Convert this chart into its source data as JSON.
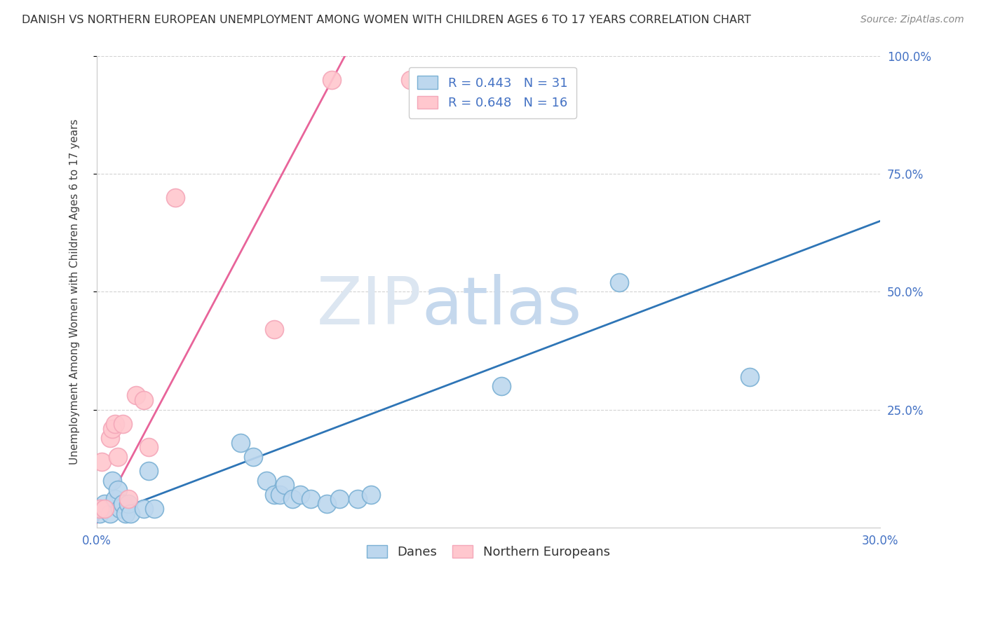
{
  "title": "DANISH VS NORTHERN EUROPEAN UNEMPLOYMENT AMONG WOMEN WITH CHILDREN AGES 6 TO 17 YEARS CORRELATION CHART",
  "source": "Source: ZipAtlas.com",
  "ylabel": "Unemployment Among Women with Children Ages 6 to 17 years",
  "xlim": [
    0.0,
    0.3
  ],
  "ylim": [
    0.0,
    1.0
  ],
  "xticks": [
    0.0,
    0.05,
    0.1,
    0.15,
    0.2,
    0.25,
    0.3
  ],
  "xticklabels": [
    "0.0%",
    "",
    "",
    "",
    "",
    "",
    "30.0%"
  ],
  "yticks": [
    0.25,
    0.5,
    0.75,
    1.0
  ],
  "yticklabels": [
    "25.0%",
    "50.0%",
    "75.0%",
    "100.0%"
  ],
  "danes_R": 0.443,
  "danes_N": 31,
  "northern_R": 0.648,
  "northern_N": 16,
  "danes_fill": "#bdd7ee",
  "danes_edge": "#7ab0d4",
  "northern_fill": "#ffc7ce",
  "northern_edge": "#f4a7b9",
  "line_danes": "#2e75b6",
  "line_northern": "#e8649a",
  "watermark_zip_color": "#dce6f1",
  "watermark_atlas_color": "#c5d8ed",
  "danes_x": [
    0.001,
    0.002,
    0.003,
    0.005,
    0.006,
    0.007,
    0.008,
    0.009,
    0.01,
    0.011,
    0.012,
    0.013,
    0.018,
    0.02,
    0.022,
    0.055,
    0.06,
    0.065,
    0.068,
    0.07,
    0.072,
    0.075,
    0.078,
    0.082,
    0.088,
    0.093,
    0.1,
    0.105,
    0.155,
    0.2,
    0.25
  ],
  "danes_y": [
    0.03,
    0.04,
    0.05,
    0.03,
    0.1,
    0.06,
    0.08,
    0.04,
    0.05,
    0.03,
    0.05,
    0.03,
    0.04,
    0.12,
    0.04,
    0.18,
    0.15,
    0.1,
    0.07,
    0.07,
    0.09,
    0.06,
    0.07,
    0.06,
    0.05,
    0.06,
    0.06,
    0.07,
    0.3,
    0.52,
    0.32
  ],
  "northern_x": [
    0.001,
    0.002,
    0.003,
    0.005,
    0.006,
    0.007,
    0.008,
    0.01,
    0.012,
    0.015,
    0.018,
    0.02,
    0.03,
    0.068,
    0.09,
    0.12
  ],
  "northern_y": [
    0.04,
    0.14,
    0.04,
    0.19,
    0.21,
    0.22,
    0.15,
    0.22,
    0.06,
    0.28,
    0.27,
    0.17,
    0.7,
    0.42,
    0.95,
    0.95
  ],
  "blue_line_x0": 0.0,
  "blue_line_y0": 0.02,
  "blue_line_x1": 0.3,
  "blue_line_y1": 0.65,
  "pink_line_x0": 0.0,
  "pink_line_y0": 0.01,
  "pink_line_x1": 0.095,
  "pink_line_y1": 1.0
}
